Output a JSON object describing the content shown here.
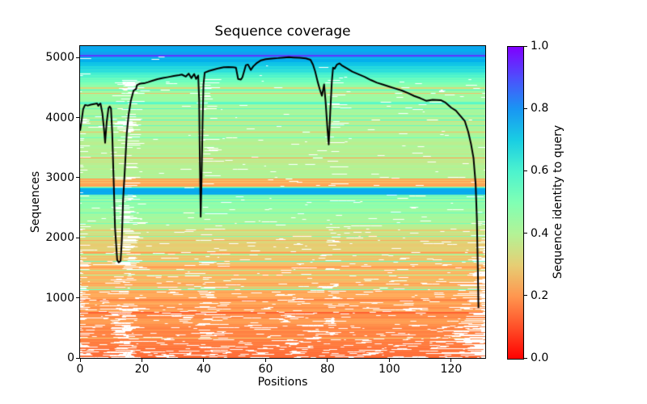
{
  "chart_data": {
    "type": "heatmap",
    "title": "Sequence coverage",
    "xlabel": "Positions",
    "ylabel": "Sequences",
    "xlim": [
      0,
      131
    ],
    "ylim": [
      0,
      5190
    ],
    "grid": false,
    "xticks": [
      {
        "value": 0,
        "label": "0"
      },
      {
        "value": 20,
        "label": "20"
      },
      {
        "value": 40,
        "label": "40"
      },
      {
        "value": 60,
        "label": "60"
      },
      {
        "value": 80,
        "label": "80"
      },
      {
        "value": 100,
        "label": "100"
      },
      {
        "value": 120,
        "label": "120"
      }
    ],
    "yticks": [
      {
        "value": 0,
        "label": "0"
      },
      {
        "value": 1000,
        "label": "1000"
      },
      {
        "value": 2000,
        "label": "2000"
      },
      {
        "value": 3000,
        "label": "3000"
      },
      {
        "value": 4000,
        "label": "4000"
      },
      {
        "value": 5000,
        "label": "5000"
      }
    ],
    "colorbar": {
      "label": "Sequence identity to query",
      "min": 0.0,
      "max": 1.0,
      "colormap": "rainbow_r",
      "ticks": [
        {
          "value": 0.0,
          "label": "0.0"
        },
        {
          "value": 0.2,
          "label": "0.2"
        },
        {
          "value": 0.4,
          "label": "0.4"
        },
        {
          "value": 0.6,
          "label": "0.6"
        },
        {
          "value": 0.8,
          "label": "0.8"
        },
        {
          "value": 1.0,
          "label": "1.0"
        }
      ],
      "gradient_stops": [
        {
          "v": 0.0,
          "color": "#ff0000"
        },
        {
          "v": 0.1,
          "color": "#ff4f28"
        },
        {
          "v": 0.2,
          "color": "#ff964f"
        },
        {
          "v": 0.3,
          "color": "#e6ce74"
        },
        {
          "v": 0.4,
          "color": "#b3f396"
        },
        {
          "v": 0.5,
          "color": "#80ffb4"
        },
        {
          "v": 0.6,
          "color": "#4df3ce"
        },
        {
          "v": 0.7,
          "color": "#19cee3"
        },
        {
          "v": 0.8,
          "color": "#1996f3"
        },
        {
          "v": 0.9,
          "color": "#4d4ffc"
        },
        {
          "v": 1.0,
          "color": "#8000ff"
        }
      ]
    },
    "coverage_line": {
      "name": "coverage",
      "color": "#000000",
      "width": 2,
      "points": [
        [
          0,
          3780
        ],
        [
          0.5,
          3950
        ],
        [
          1,
          4140
        ],
        [
          1.6,
          4210
        ],
        [
          2.5,
          4200
        ],
        [
          3.5,
          4215
        ],
        [
          4.5,
          4225
        ],
        [
          5.5,
          4235
        ],
        [
          5.9,
          4195
        ],
        [
          6.3,
          4225
        ],
        [
          6.6,
          4235
        ],
        [
          7.2,
          4075
        ],
        [
          7.7,
          3830
        ],
        [
          8.1,
          3580
        ],
        [
          8.6,
          3920
        ],
        [
          9.2,
          4160
        ],
        [
          9.6,
          4185
        ],
        [
          10,
          4150
        ],
        [
          10.4,
          3740
        ],
        [
          10.8,
          3060
        ],
        [
          11.3,
          2170
        ],
        [
          12,
          1630
        ],
        [
          12.5,
          1590
        ],
        [
          13.1,
          1615
        ],
        [
          13.5,
          1950
        ],
        [
          13.9,
          2620
        ],
        [
          14.5,
          3155
        ],
        [
          15.1,
          3740
        ],
        [
          15.7,
          4050
        ],
        [
          16.4,
          4275
        ],
        [
          17.3,
          4450
        ],
        [
          18.1,
          4475
        ],
        [
          18.4,
          4540
        ],
        [
          19.4,
          4565
        ],
        [
          20.7,
          4570
        ],
        [
          22,
          4590
        ],
        [
          23.3,
          4612
        ],
        [
          25,
          4638
        ],
        [
          26.8,
          4658
        ],
        [
          28.5,
          4674
        ],
        [
          30.3,
          4692
        ],
        [
          32,
          4706
        ],
        [
          32.9,
          4716
        ],
        [
          34.2,
          4682
        ],
        [
          35.1,
          4732
        ],
        [
          36,
          4657
        ],
        [
          36.9,
          4726
        ],
        [
          37.5,
          4642
        ],
        [
          38.2,
          4700
        ],
        [
          38.5,
          4300
        ],
        [
          38.75,
          3200
        ],
        [
          39,
          2350
        ],
        [
          39.3,
          3000
        ],
        [
          39.6,
          3900
        ],
        [
          39.9,
          4550
        ],
        [
          40.3,
          4747
        ],
        [
          41.7,
          4777
        ],
        [
          44.3,
          4813
        ],
        [
          46.4,
          4836
        ],
        [
          48,
          4840
        ],
        [
          49.5,
          4838
        ],
        [
          50.4,
          4830
        ],
        [
          51.1,
          4642
        ],
        [
          52,
          4632
        ],
        [
          52.5,
          4672
        ],
        [
          53.6,
          4872
        ],
        [
          54.3,
          4882
        ],
        [
          55.2,
          4792
        ],
        [
          56,
          4852
        ],
        [
          57,
          4902
        ],
        [
          58.5,
          4952
        ],
        [
          60,
          4972
        ],
        [
          62,
          4983
        ],
        [
          64,
          4990
        ],
        [
          66,
          5000
        ],
        [
          67.5,
          5005
        ],
        [
          69,
          5000
        ],
        [
          71,
          4994
        ],
        [
          73,
          4985
        ],
        [
          74.5,
          4962
        ],
        [
          75.3,
          4880
        ],
        [
          76,
          4770
        ],
        [
          76.8,
          4600
        ],
        [
          77.5,
          4470
        ],
        [
          78.2,
          4362
        ],
        [
          78.9,
          4552
        ],
        [
          79.4,
          4250
        ],
        [
          80,
          3800
        ],
        [
          80.4,
          3552
        ],
        [
          80.9,
          4100
        ],
        [
          81.4,
          4600
        ],
        [
          81.8,
          4830
        ],
        [
          82.3,
          4815
        ],
        [
          83,
          4878
        ],
        [
          83.9,
          4902
        ],
        [
          84.8,
          4862
        ],
        [
          86.5,
          4812
        ],
        [
          88,
          4765
        ],
        [
          90,
          4722
        ],
        [
          92,
          4678
        ],
        [
          94,
          4625
        ],
        [
          96,
          4580
        ],
        [
          98,
          4548
        ],
        [
          100,
          4515
        ],
        [
          102,
          4482
        ],
        [
          104,
          4450
        ],
        [
          106,
          4408
        ],
        [
          108,
          4360
        ],
        [
          110,
          4322
        ],
        [
          112,
          4278
        ],
        [
          114,
          4295
        ],
        [
          116.6,
          4290
        ],
        [
          118,
          4255
        ],
        [
          120,
          4165
        ],
        [
          121.5,
          4115
        ],
        [
          123,
          4025
        ],
        [
          124.4,
          3940
        ],
        [
          125.5,
          3762
        ],
        [
          126.4,
          3560
        ],
        [
          127.2,
          3330
        ],
        [
          127.9,
          2890
        ],
        [
          128.3,
          2300
        ],
        [
          128.6,
          1500
        ],
        [
          128.8,
          830
        ]
      ]
    },
    "heatmap": {
      "seed": 7,
      "row_noise": 0.025,
      "identity_profile": [
        [
          0,
          0.15
        ],
        [
          400,
          0.18
        ],
        [
          900,
          0.215
        ],
        [
          1400,
          0.255
        ],
        [
          1900,
          0.305
        ],
        [
          2300,
          0.42
        ],
        [
          2550,
          0.465
        ],
        [
          2870,
          0.47
        ],
        [
          2990,
          0.4
        ],
        [
          3250,
          0.385
        ],
        [
          3600,
          0.405
        ],
        [
          4000,
          0.42
        ],
        [
          4300,
          0.435
        ],
        [
          4520,
          0.455
        ],
        [
          4570,
          0.5
        ],
        [
          4650,
          0.56
        ],
        [
          4750,
          0.63
        ],
        [
          4850,
          0.7
        ],
        [
          4950,
          0.745
        ],
        [
          5050,
          0.77
        ],
        [
          5190,
          0.78
        ]
      ],
      "solid_bands": [
        {
          "from": 2718,
          "to": 2825,
          "identity": 0.765,
          "noise": 0.01,
          "gap": 0.012
        },
        {
          "from": 2845,
          "to": 2985,
          "identity": 0.25,
          "noise": 0.05,
          "gap": 0.05
        },
        {
          "from": 5012,
          "to": 5040,
          "identity": 0.93,
          "noise": 0.0,
          "gap": 0.004
        }
      ],
      "highlight_rows": [
        {
          "seq": 2833,
          "identity": 0.63
        },
        {
          "seq": 4235,
          "identity": 0.58
        },
        {
          "seq": 4150,
          "identity": 0.57
        },
        {
          "seq": 4030,
          "identity": 0.57
        },
        {
          "seq": 3955,
          "identity": 0.58
        },
        {
          "seq": 3870,
          "identity": 0.56
        },
        {
          "seq": 2700,
          "identity": 0.6
        },
        {
          "seq": 2655,
          "identity": 0.57
        },
        {
          "seq": 2605,
          "identity": 0.56
        },
        {
          "seq": 2410,
          "identity": 0.55
        },
        {
          "seq": 1610,
          "identity": 0.55
        },
        {
          "seq": 1140,
          "identity": 0.54
        }
      ],
      "row_outliers": [
        {
          "seq": [
            2990,
            4570
          ],
          "down_p": 0.06,
          "down": [
            0.1,
            0.18
          ],
          "up_p": 0.04,
          "up": [
            0.1,
            0.15
          ]
        },
        {
          "seq": [
            900,
            2300
          ],
          "down_p": 0.06,
          "down": [
            0.06,
            0.1
          ],
          "up_p": 0.08,
          "up": [
            0.1,
            0.16
          ]
        },
        {
          "seq": [
            0,
            900
          ],
          "down_p": 0.05,
          "down": [
            0.04,
            0.08
          ],
          "up_p": 0.05,
          "up": [
            0.06,
            0.12
          ]
        }
      ],
      "gap_profile": [
        [
          0,
          0.48
        ],
        [
          150,
          0.43
        ],
        [
          400,
          0.36
        ],
        [
          800,
          0.28
        ],
        [
          1200,
          0.22
        ],
        [
          1700,
          0.16
        ],
        [
          2200,
          0.115
        ],
        [
          2715,
          0.085
        ],
        [
          2840,
          0.05
        ],
        [
          2990,
          0.055
        ],
        [
          4560,
          0.055
        ],
        [
          4650,
          0.03
        ],
        [
          4850,
          0.012
        ],
        [
          5190,
          0.008
        ]
      ],
      "gap_stripes": [
        {
          "pos": [
            9.8,
            15.6
          ],
          "seq": [
            1450,
            4620
          ],
          "boost": 12
        },
        {
          "pos": [
            9.8,
            15.6
          ],
          "seq": [
            0,
            1450
          ],
          "boost": 2.5
        },
        {
          "pos": [
            38.2,
            40.4
          ],
          "seq": [
            2300,
            4720
          ],
          "boost": 12
        },
        {
          "pos": [
            38.2,
            40.4
          ],
          "seq": [
            300,
            2300
          ],
          "boost": 3.5
        },
        {
          "pos": [
            79.2,
            81.8
          ],
          "seq": [
            2750,
            4870
          ],
          "boost": 10
        },
        {
          "pos": [
            79.2,
            81.8
          ],
          "seq": [
            300,
            2750
          ],
          "boost": 3
        },
        {
          "pos": [
            50.6,
            53.8
          ],
          "seq": [
            2550,
            3650
          ],
          "boost": 3
        },
        {
          "pos": [
            4.6,
            7.8
          ],
          "seq": [
            3050,
            4100
          ],
          "boost": 2.2
        },
        {
          "pos": [
            115,
            131
          ],
          "seq": [
            4250,
            5150
          ],
          "boost": 2.5
        },
        {
          "pos": [
            0,
            1.5
          ],
          "seq": [
            2900,
            4300
          ],
          "boost": 2
        }
      ],
      "ragged_right": {
        "max_seq": 2300,
        "base_p": 0.25,
        "extra_p": 0.55,
        "base_len": 10,
        "extra_len": 65
      },
      "ragged_left": {
        "max_seq": 1800,
        "p": 0.3,
        "len": 12
      }
    }
  }
}
